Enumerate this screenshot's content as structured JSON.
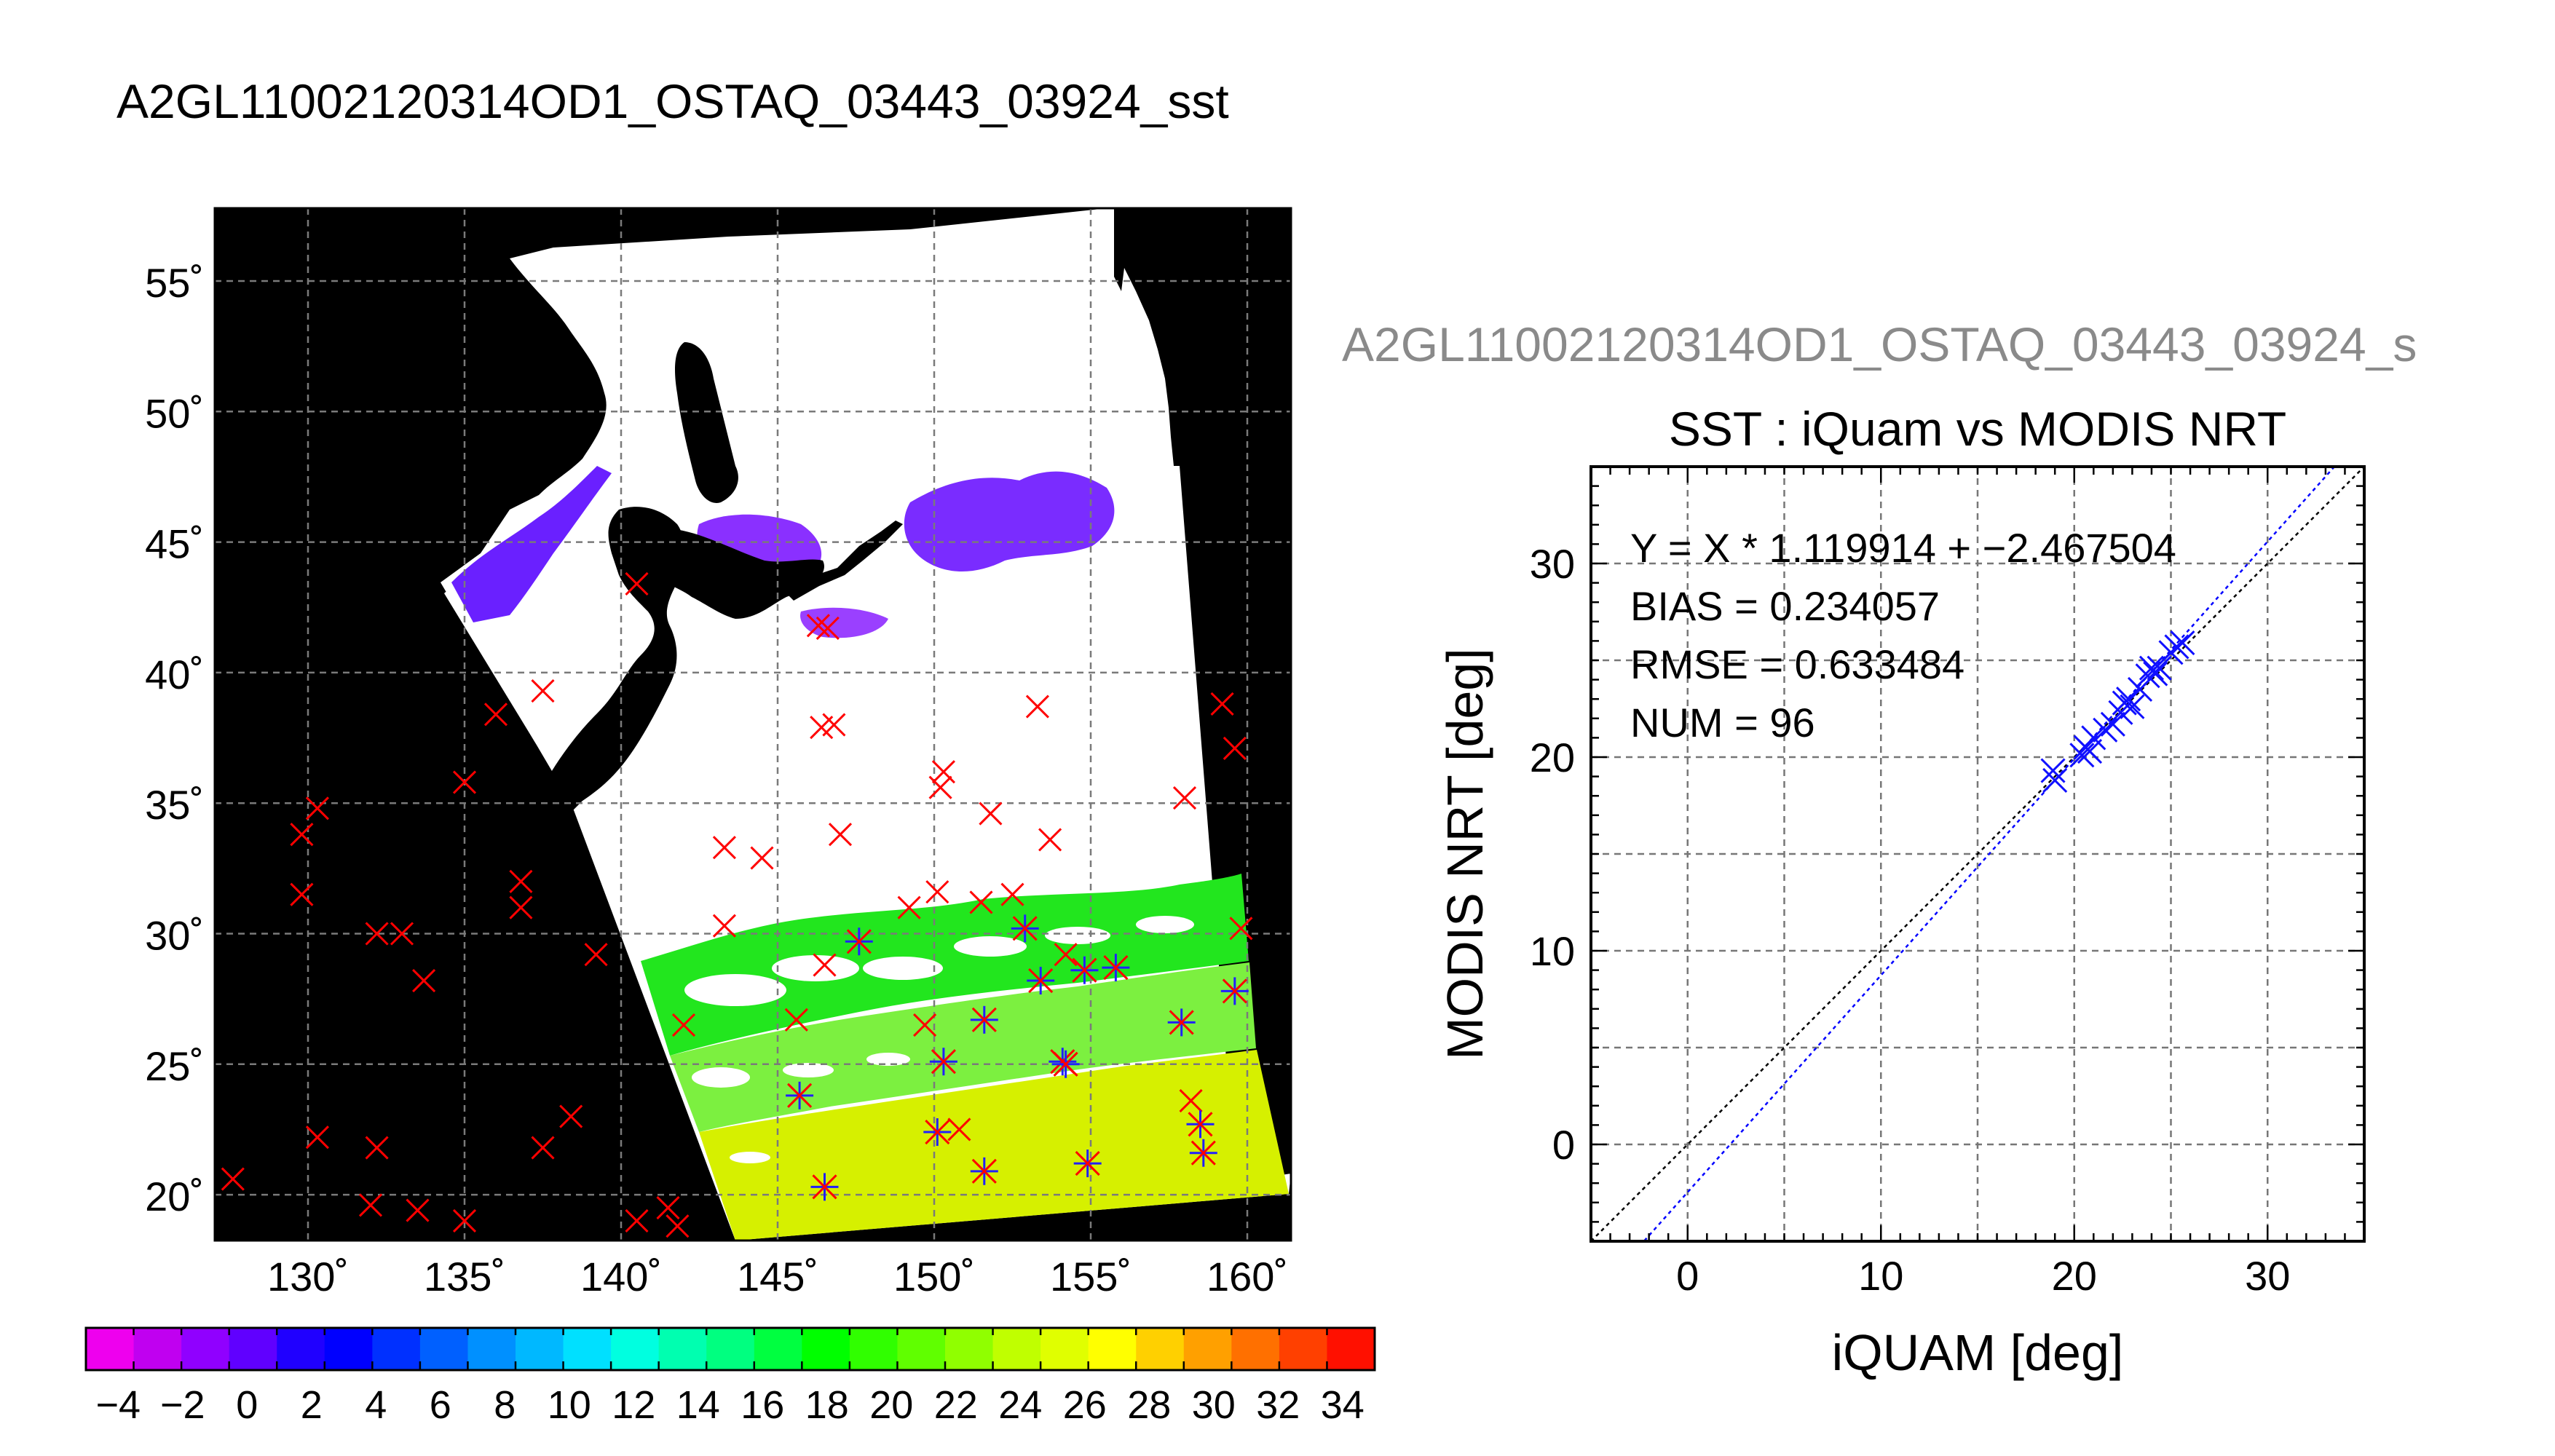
{
  "main_title": "A2GL11002120314OD1_OSTAQ_03443_03924_sst",
  "scatter_header": "A2GL11002120314OD1_OSTAQ_03443_03924_s",
  "colors": {
    "map_background": "#000000",
    "land": "#000000",
    "cloud": "#ffffff",
    "in_situ_marker": "#ff0000",
    "matchup_marker": "#2020ff",
    "fit_line": "#0000ff",
    "identity_line": "#000000",
    "grid": "#888888"
  },
  "map": {
    "lat_labels": [
      "55˚",
      "50˚",
      "45˚",
      "40˚",
      "35˚",
      "30˚",
      "25˚",
      "20˚"
    ],
    "lon_labels": [
      "130˚",
      "135˚",
      "140˚",
      "145˚",
      "150˚",
      "155˚",
      "160˚"
    ],
    "colorbar_labels": [
      "−4",
      "−2",
      "0",
      "2",
      "4",
      "6",
      "8",
      "10",
      "12",
      "14",
      "16",
      "18",
      "20",
      "22",
      "24",
      "26",
      "28",
      "30",
      "32",
      "34"
    ],
    "colorbar_colors": [
      "#ee00ee",
      "#c000f0",
      "#9000ff",
      "#6000ff",
      "#2000ff",
      "#0000ff",
      "#0030ff",
      "#0060ff",
      "#0090ff",
      "#00b8ff",
      "#00e0ff",
      "#00ffe0",
      "#00ffb0",
      "#00ff80",
      "#00ff40",
      "#00ff00",
      "#30ff00",
      "#60ff00",
      "#90ff00",
      "#c0ff00",
      "#e0ff00",
      "#ffff00",
      "#ffd000",
      "#ffa000",
      "#ff7000",
      "#ff4000",
      "#ff1000"
    ]
  },
  "chart_data": {
    "type": "scatter",
    "title": "SST : iQuam vs MODIS NRT",
    "xlabel": "iQUAM [deg]",
    "ylabel": "MODIS NRT [deg]",
    "xlim": [
      -5,
      35
    ],
    "ylim": [
      -5,
      35
    ],
    "xticks": [
      "0",
      "10",
      "20",
      "30"
    ],
    "yticks": [
      "0",
      "10",
      "20",
      "30"
    ],
    "grid": true,
    "annotations": [
      "Y = X * 1.119914 + −2.467504",
      "BIAS = 0.234057",
      "RMSE = 0.633484",
      "NUM = 96"
    ],
    "fit": {
      "slope": 1.119914,
      "intercept": -2.467504
    },
    "points": {
      "x": [
        18.9,
        19.0,
        20.4,
        20.6,
        20.8,
        21.0,
        21.6,
        22.0,
        22.4,
        22.6,
        22.8,
        23.0,
        23.4,
        23.8,
        24.0,
        24.2,
        24.4,
        25.0,
        25.3,
        25.6
      ],
      "y": [
        19.3,
        18.8,
        20.1,
        20.5,
        20.3,
        21.0,
        21.4,
        21.7,
        22.3,
        22.8,
        23.0,
        22.6,
        23.5,
        24.2,
        24.6,
        24.3,
        24.6,
        25.4,
        25.7,
        25.9
      ]
    }
  }
}
